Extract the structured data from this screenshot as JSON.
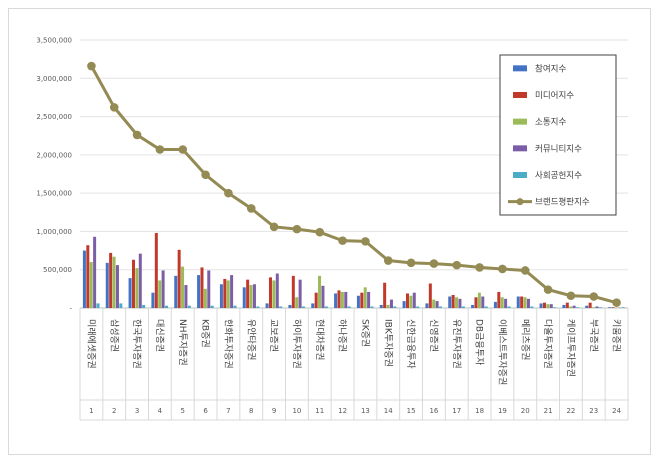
{
  "chart_data": {
    "type": "bar",
    "ylim": [
      0,
      3500000
    ],
    "yticks": [
      0,
      500000,
      1000000,
      1500000,
      2000000,
      2500000,
      3000000,
      3500000
    ],
    "ytick_labels": [
      "-",
      "500,000",
      "1,000,000",
      "1,500,000",
      "2,000,000",
      "2,500,000",
      "3,000,000",
      "3,500,000"
    ],
    "legend_position": "top-right",
    "grid": true,
    "categories": [
      "미래에셋증권",
      "삼성증권",
      "한국투자증권",
      "대신증권",
      "NH투자증권",
      "KB증권",
      "한화투자증권",
      "유안타증권",
      "교보증권",
      "하이투자증권",
      "현대차증권",
      "하나증권",
      "SK증권",
      "IBK투자증권",
      "신한금융투자",
      "신영증권",
      "유진투자증권",
      "DB금융투자",
      "이베스트투자증권",
      "메리츠증권",
      "다올투자증권",
      "케이프투자증권",
      "부국증권",
      "키움증권"
    ],
    "index_labels": [
      "1",
      "2",
      "3",
      "4",
      "5",
      "6",
      "7",
      "8",
      "9",
      "10",
      "11",
      "12",
      "13",
      "14",
      "15",
      "16",
      "17",
      "18",
      "19",
      "20",
      "21",
      "22",
      "23",
      "24"
    ],
    "series": [
      {
        "name": "참여지수",
        "color": "#4472c4",
        "kind": "bar",
        "values": [
          750000,
          590000,
          390000,
          200000,
          420000,
          430000,
          310000,
          270000,
          60000,
          40000,
          60000,
          190000,
          160000,
          40000,
          90000,
          60000,
          150000,
          40000,
          80000,
          150000,
          60000,
          40000,
          30000,
          10000
        ]
      },
      {
        "name": "미디어지수",
        "color": "#c0392b",
        "kind": "bar",
        "values": [
          820000,
          720000,
          630000,
          980000,
          760000,
          530000,
          380000,
          370000,
          400000,
          420000,
          200000,
          230000,
          200000,
          330000,
          190000,
          320000,
          170000,
          140000,
          210000,
          150000,
          70000,
          70000,
          70000,
          10000
        ]
      },
      {
        "name": "소통지수",
        "color": "#9bbb59",
        "kind": "bar",
        "values": [
          600000,
          670000,
          520000,
          360000,
          540000,
          250000,
          360000,
          300000,
          360000,
          140000,
          420000,
          210000,
          270000,
          40000,
          160000,
          110000,
          140000,
          200000,
          140000,
          140000,
          50000,
          20000,
          10000,
          5000
        ]
      },
      {
        "name": "커뮤니티지수",
        "color": "#7b5ea7",
        "kind": "bar",
        "values": [
          930000,
          560000,
          710000,
          490000,
          300000,
          490000,
          430000,
          310000,
          450000,
          370000,
          290000,
          210000,
          210000,
          110000,
          200000,
          90000,
          120000,
          150000,
          120000,
          120000,
          50000,
          30000,
          20000,
          5000
        ]
      },
      {
        "name": "사회공헌지수",
        "color": "#4bacc6",
        "kind": "bar",
        "values": [
          60000,
          60000,
          40000,
          30000,
          30000,
          30000,
          30000,
          20000,
          20000,
          20000,
          20000,
          20000,
          20000,
          20000,
          20000,
          20000,
          20000,
          20000,
          20000,
          20000,
          10000,
          10000,
          10000,
          10000
        ]
      },
      {
        "name": "브랜드평판지수",
        "color": "#948a54",
        "kind": "line",
        "values": [
          3160000,
          2620000,
          2260000,
          2070000,
          2070000,
          1740000,
          1500000,
          1300000,
          1060000,
          1030000,
          990000,
          880000,
          870000,
          620000,
          590000,
          580000,
          560000,
          530000,
          510000,
          490000,
          240000,
          160000,
          150000,
          70000
        ]
      }
    ]
  }
}
